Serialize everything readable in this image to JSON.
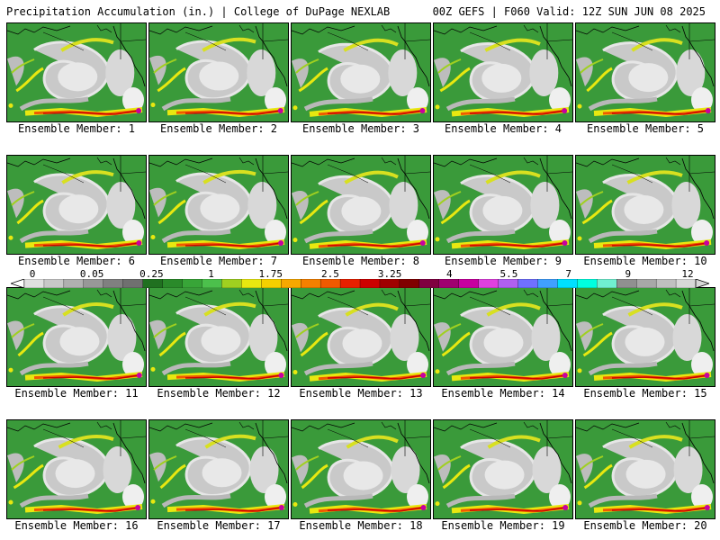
{
  "header": {
    "left": "Precipitation Accumulation (in.) | College of DuPage NEXLAB",
    "right": "00Z GEFS | F060 Valid: 12Z SUN JUN 08 2025"
  },
  "members": [
    {
      "label": "Ensemble Member: 1"
    },
    {
      "label": "Ensemble Member: 2"
    },
    {
      "label": "Ensemble Member: 3"
    },
    {
      "label": "Ensemble Member: 4"
    },
    {
      "label": "Ensemble Member: 5"
    },
    {
      "label": "Ensemble Member: 6"
    },
    {
      "label": "Ensemble Member: 7"
    },
    {
      "label": "Ensemble Member: 8"
    },
    {
      "label": "Ensemble Member: 9"
    },
    {
      "label": "Ensemble Member: 10"
    },
    {
      "label": "Ensemble Member: 11"
    },
    {
      "label": "Ensemble Member: 12"
    },
    {
      "label": "Ensemble Member: 13"
    },
    {
      "label": "Ensemble Member: 14"
    },
    {
      "label": "Ensemble Member: 15"
    },
    {
      "label": "Ensemble Member: 16"
    },
    {
      "label": "Ensemble Member: 17"
    },
    {
      "label": "Ensemble Member: 18"
    },
    {
      "label": "Ensemble Member: 19"
    },
    {
      "label": "Ensemble Member: 20"
    }
  ],
  "colorbar": {
    "ticks": [
      "0",
      "0.05",
      "0.25",
      "1",
      "1.75",
      "2.5",
      "3.25",
      "4",
      "5.5",
      "7",
      "9",
      "12"
    ],
    "colors": [
      "#e0e0e0",
      "#c8c8c8",
      "#b0b0b0",
      "#989898",
      "#808080",
      "#707070",
      "#207020",
      "#2a8a2a",
      "#38a538",
      "#4cc04c",
      "#a0d020",
      "#e8e810",
      "#f5d000",
      "#f7a800",
      "#f58000",
      "#f05a00",
      "#e82000",
      "#cc0000",
      "#a00000",
      "#800000",
      "#800040",
      "#a00070",
      "#c800a0",
      "#e040e0",
      "#b060f0",
      "#7070ff",
      "#40a0ff",
      "#00e0ff",
      "#00ffe0",
      "#70f0d0",
      "#909090",
      "#a8a8a8",
      "#c0c0c0",
      "#d8d8d8"
    ]
  }
}
